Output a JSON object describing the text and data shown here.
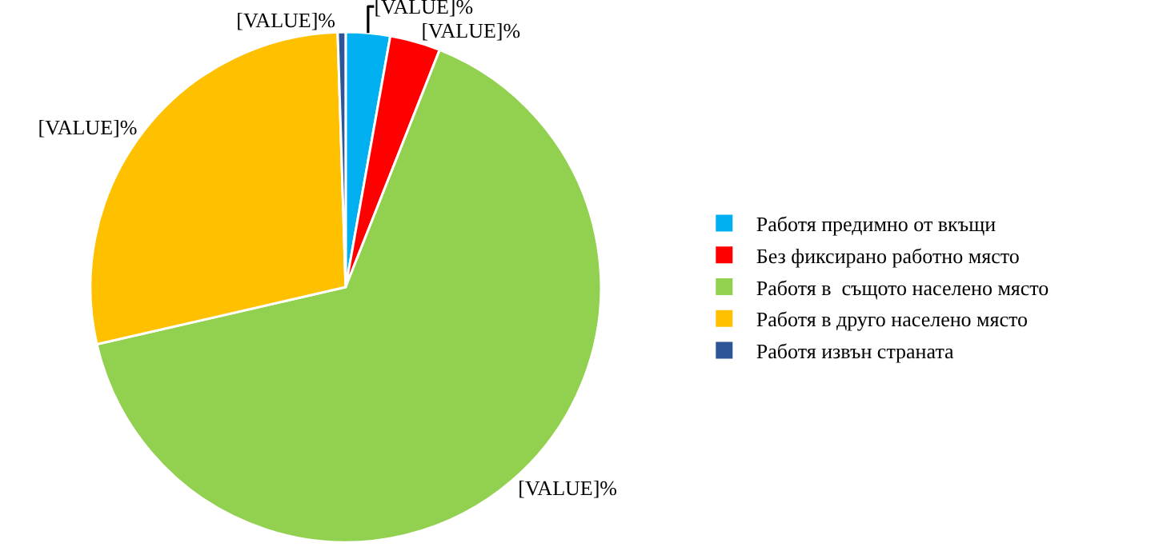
{
  "chart_data": {
    "type": "pie",
    "categories": [
      "Работя предимно от вкъщи",
      "Без фиксирано работно място",
      "Работя в  същото населено място",
      "Работя в друго населено място",
      "Работя извън страната"
    ],
    "values": [
      2.8,
      3.2,
      65.4,
      28.1,
      0.5
    ],
    "colors": [
      "#00b0f0",
      "#ff0000",
      "#92d050",
      "#ffc000",
      "#2e5597"
    ],
    "value_labels": [
      "[VALUE]%",
      "[VALUE]%",
      "[VALUE]%",
      "[VALUE]%",
      "[VALUE]%"
    ],
    "legend": "right"
  }
}
